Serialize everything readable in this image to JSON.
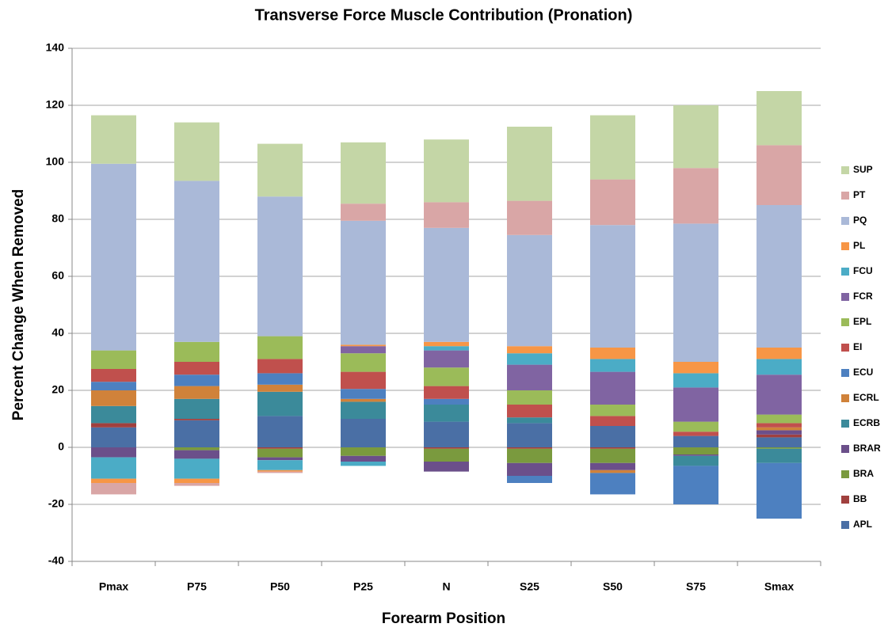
{
  "chart_data": {
    "type": "stacked-bar",
    "title": "Transverse Force Muscle Contribution (Pronation)",
    "xlabel": "Forearm Position",
    "ylabel": "Percent Change When Removed",
    "categories": [
      "Pmax",
      "P75",
      "P50",
      "P25",
      "N",
      "S25",
      "S50",
      "S75",
      "Smax"
    ],
    "series": [
      {
        "name": "APL",
        "color": "#4a6fa5",
        "values": [
          7,
          9.5,
          11,
          10,
          9,
          8.5,
          7.5,
          4,
          3.5
        ]
      },
      {
        "name": "BB",
        "color": "#a0403e",
        "values": [
          1.5,
          0.5,
          -0.5,
          0,
          -0.5,
          -0.5,
          -0.5,
          0,
          1
        ]
      },
      {
        "name": "BRA",
        "color": "#7a9a3e",
        "values": [
          0,
          -1,
          -3,
          -3,
          -4.5,
          -5,
          -5,
          -2.5,
          -0.5
        ]
      },
      {
        "name": "BRAR",
        "color": "#6b4f8a",
        "values": [
          -3.5,
          -3,
          -1,
          -2,
          -3.5,
          -4.5,
          -2.5,
          -0.5,
          1.5
        ]
      },
      {
        "name": "ECRB",
        "color": "#3b8a9a",
        "values": [
          6,
          7,
          8.5,
          6,
          6,
          2,
          0,
          -3.5,
          -5
        ]
      },
      {
        "name": "ECRL",
        "color": "#d0823a",
        "values": [
          5.5,
          4.5,
          2.5,
          1,
          0,
          0,
          -1,
          0,
          1
        ]
      },
      {
        "name": "ECU",
        "color": "#4d80c0",
        "values": [
          3,
          4,
          4,
          3.5,
          2,
          -2.5,
          -7.5,
          -13.5,
          -19.5
        ]
      },
      {
        "name": "EI",
        "color": "#c0504d",
        "values": [
          4.5,
          4.5,
          5,
          6,
          4.5,
          4.5,
          3.5,
          1.5,
          1.5
        ]
      },
      {
        "name": "EPL",
        "color": "#9bbb59",
        "values": [
          6.5,
          7,
          8,
          6.5,
          6.5,
          5,
          4,
          3.5,
          3
        ]
      },
      {
        "name": "FCR",
        "color": "#8064a2",
        "values": [
          0,
          0,
          0,
          2.5,
          6,
          9,
          11.5,
          12,
          14
        ]
      },
      {
        "name": "FCU",
        "color": "#4bacc6",
        "values": [
          -7.5,
          -7,
          -3.5,
          -1.5,
          1.5,
          4,
          4.5,
          5,
          5.5
        ]
      },
      {
        "name": "PL",
        "color": "#f79646",
        "values": [
          -1.5,
          -1.5,
          -0.5,
          0.5,
          1.5,
          2.5,
          4,
          4,
          4
        ]
      },
      {
        "name": "PQ",
        "color": "#aab9d8",
        "values": [
          65.5,
          56.5,
          49,
          43.5,
          40,
          39,
          43,
          48.5,
          50
        ]
      },
      {
        "name": "PT",
        "color": "#d9a6a6",
        "values": [
          -4,
          -1,
          -0.5,
          6,
          9,
          12,
          16,
          19.5,
          21
        ]
      },
      {
        "name": "SUP",
        "color": "#c4d6a6",
        "values": [
          17,
          20.5,
          18.5,
          21.5,
          22,
          26,
          22.5,
          22,
          19
        ]
      }
    ],
    "ylim": [
      -40,
      140
    ],
    "yticks": [
      -40,
      -20,
      0,
      20,
      40,
      60,
      80,
      100,
      120,
      140
    ],
    "grid": true,
    "legend": "right"
  }
}
